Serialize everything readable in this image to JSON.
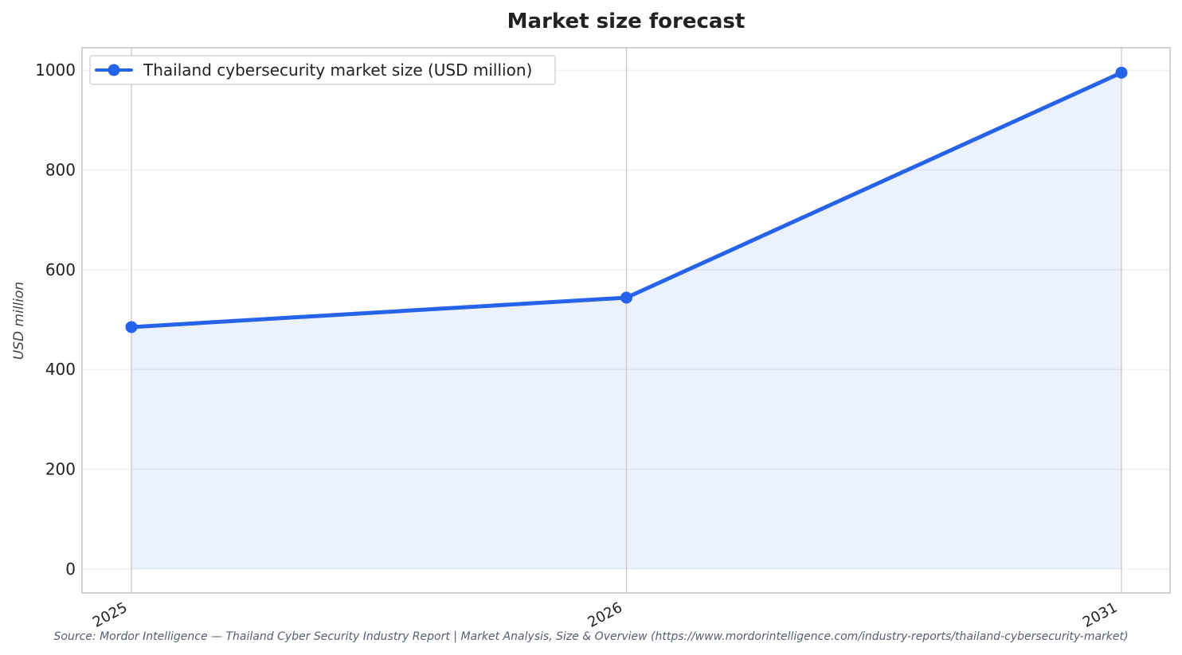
{
  "chart_data": {
    "type": "line",
    "title": "Market size forecast",
    "xlabel": "",
    "ylabel": "USD million",
    "categories": [
      "2025",
      "2026",
      "2031"
    ],
    "series": [
      {
        "name": "Thailand cybersecurity market size (USD million)",
        "values": [
          485,
          544,
          995
        ],
        "color": "#2563eb",
        "fill": "area"
      }
    ],
    "ylim": [
      -48,
      1045
    ],
    "yticks": [
      0,
      200,
      400,
      600,
      800,
      1000
    ],
    "ytick_labels": [
      "0",
      "200",
      "400",
      "600",
      "800",
      "1000"
    ],
    "grid": true,
    "legend": "top-left",
    "source": "Source: Mordor Intelligence — Thailand Cyber Security Industry Report | Market Analysis, Size & Overview (https://www.mordorintelligence.com/industry-reports/thailand-cybersecurity-market)"
  }
}
